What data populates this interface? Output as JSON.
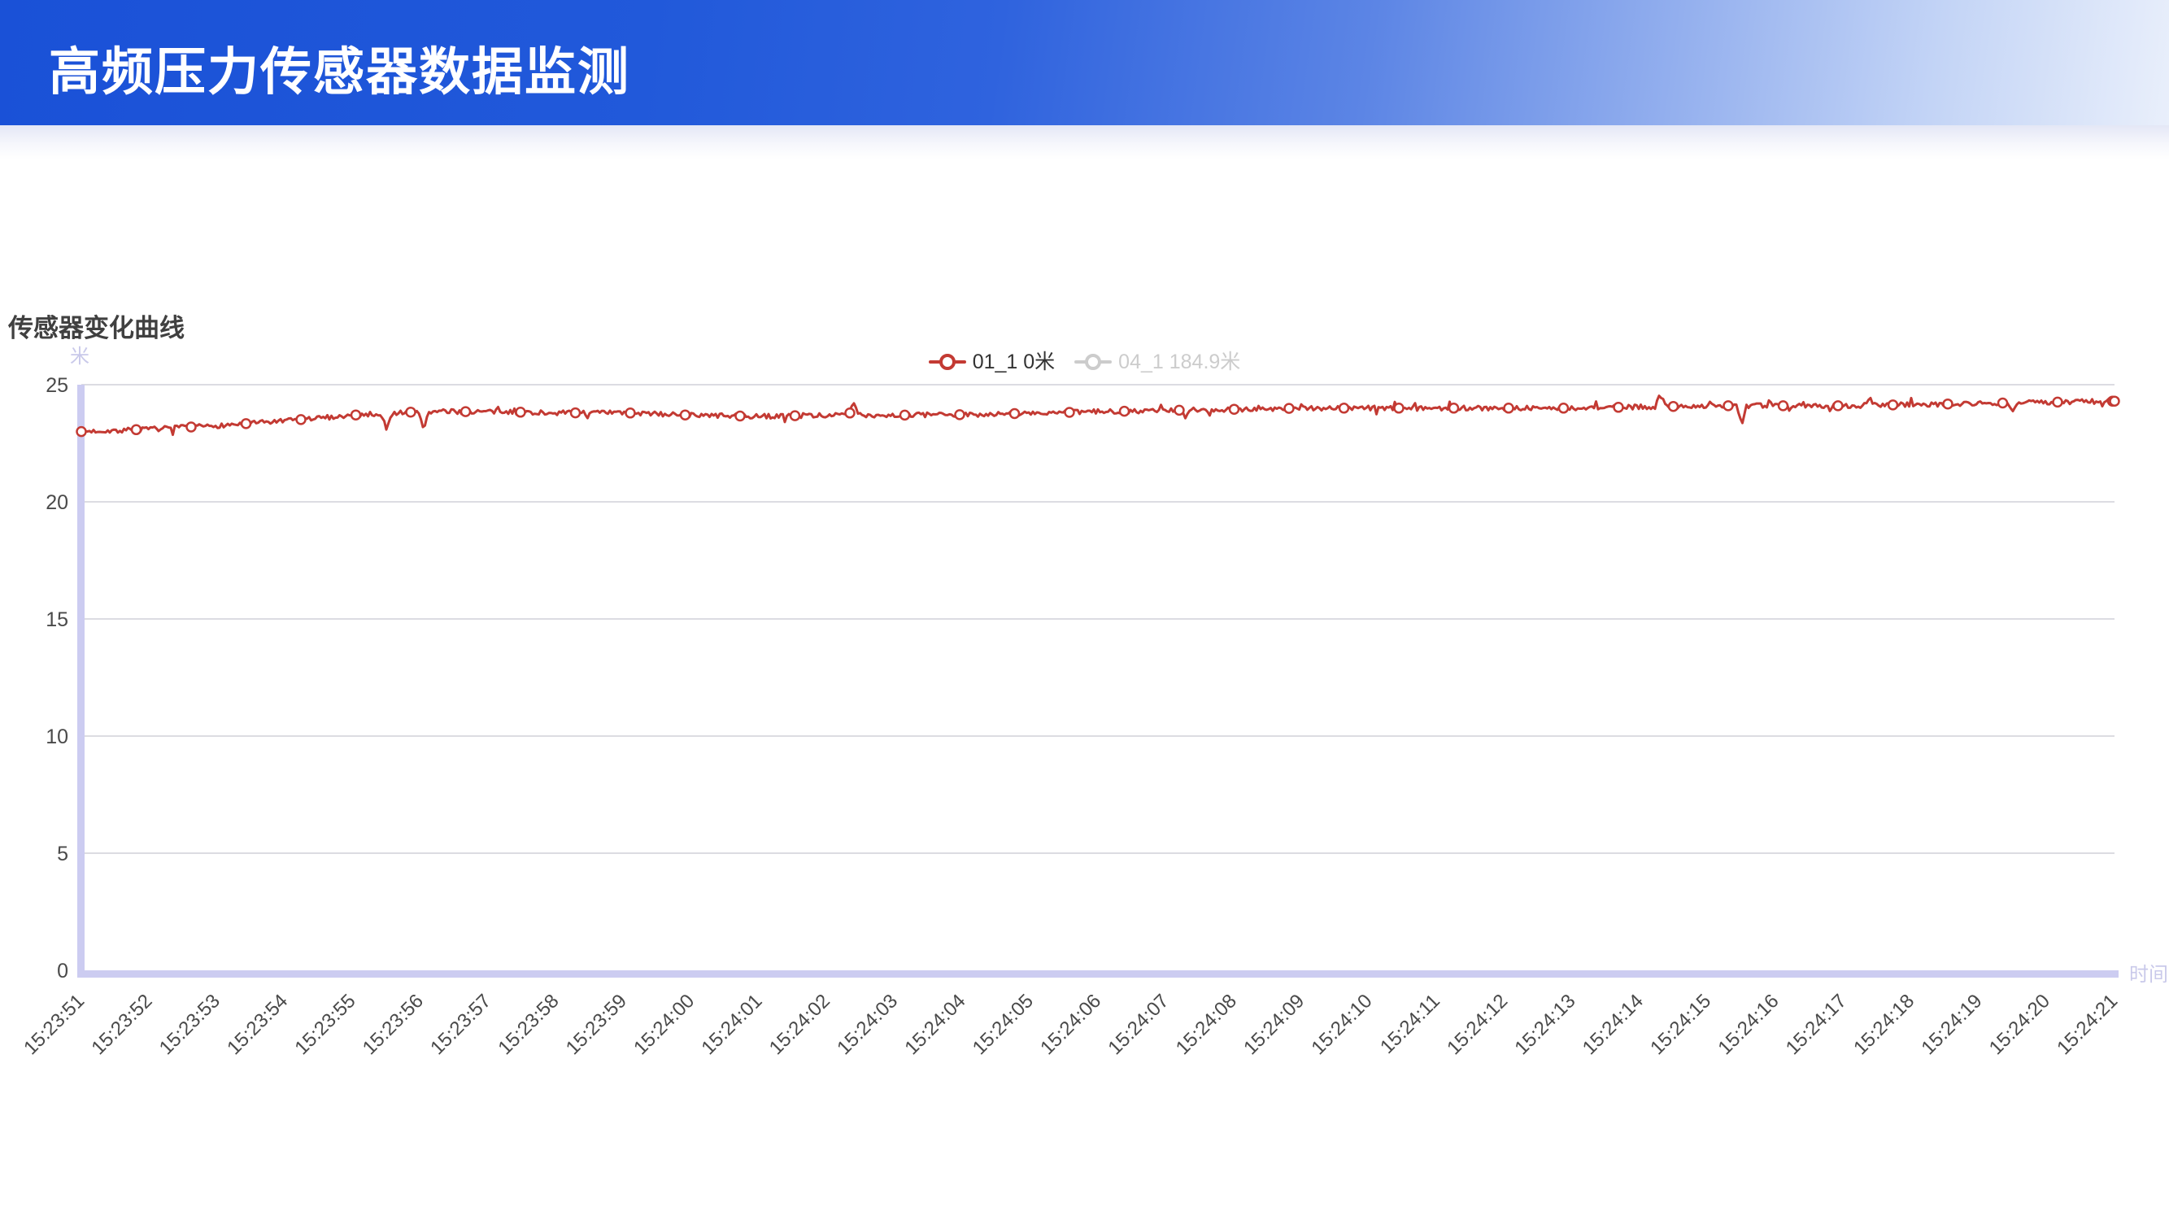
{
  "header": {
    "title": "高频压力传感器数据监测"
  },
  "chart": {
    "title": "传感器变化曲线",
    "y_unit": "米",
    "x_name": "时间",
    "legend": [
      {
        "label": "01_1 0米",
        "color": "#c33a33",
        "text_color": "#333333",
        "active": true
      },
      {
        "label": "04_1 184.9米",
        "color": "#cccccc",
        "text_color": "#cccccc",
        "active": false
      }
    ]
  },
  "chart_data": {
    "type": "line",
    "title": "传感器变化曲线",
    "x": [
      "15:23:51",
      "15:23:52",
      "15:23:53",
      "15:23:54",
      "15:23:55",
      "15:23:56",
      "15:23:57",
      "15:23:58",
      "15:23:59",
      "15:24:00",
      "15:24:01",
      "15:24:02",
      "15:24:03",
      "15:24:04",
      "15:24:05",
      "15:24:06",
      "15:24:07",
      "15:24:08",
      "15:24:09",
      "15:24:10",
      "15:24:11",
      "15:24:12",
      "15:24:13",
      "15:24:14",
      "15:24:15",
      "15:24:16",
      "15:24:17",
      "15:24:18",
      "15:24:19",
      "15:24:20",
      "15:24:21"
    ],
    "series": [
      {
        "name": "01_1 0米",
        "color": "#c33a33",
        "visible": true,
        "values": [
          23.0,
          23.1,
          23.25,
          23.45,
          23.7,
          23.85,
          23.85,
          23.8,
          23.8,
          23.7,
          23.65,
          23.7,
          23.7,
          23.72,
          23.78,
          23.85,
          23.9,
          23.95,
          24.0,
          24.0,
          24.0,
          24.0,
          24.0,
          24.05,
          24.1,
          24.1,
          24.1,
          24.15,
          24.2,
          24.25,
          24.3
        ]
      },
      {
        "name": "04_1 184.9米",
        "color": "#cccccc",
        "visible": false,
        "values": []
      }
    ],
    "noise_spikes": [
      {
        "i": 4.5,
        "v": 23.0
      },
      {
        "i": 5.05,
        "v": 23.1
      },
      {
        "i": 11.4,
        "v": 24.25
      },
      {
        "i": 16.3,
        "v": 23.6
      },
      {
        "i": 23.3,
        "v": 24.6
      },
      {
        "i": 24.5,
        "v": 23.35
      },
      {
        "i": 26.4,
        "v": 24.4
      },
      {
        "i": 28.5,
        "v": 23.85
      }
    ],
    "ylim": [
      0,
      25
    ],
    "yticks": [
      0,
      5,
      10,
      15,
      20,
      25
    ],
    "ylabel": "米",
    "xlabel": "时间",
    "grid": true,
    "legend_position": "top-center",
    "colors": {
      "axis_band": "#ccccf1",
      "gridline": "#dcdce2",
      "tick_label": "#4a4a4a",
      "axis_name": "#c9c9ea"
    }
  }
}
